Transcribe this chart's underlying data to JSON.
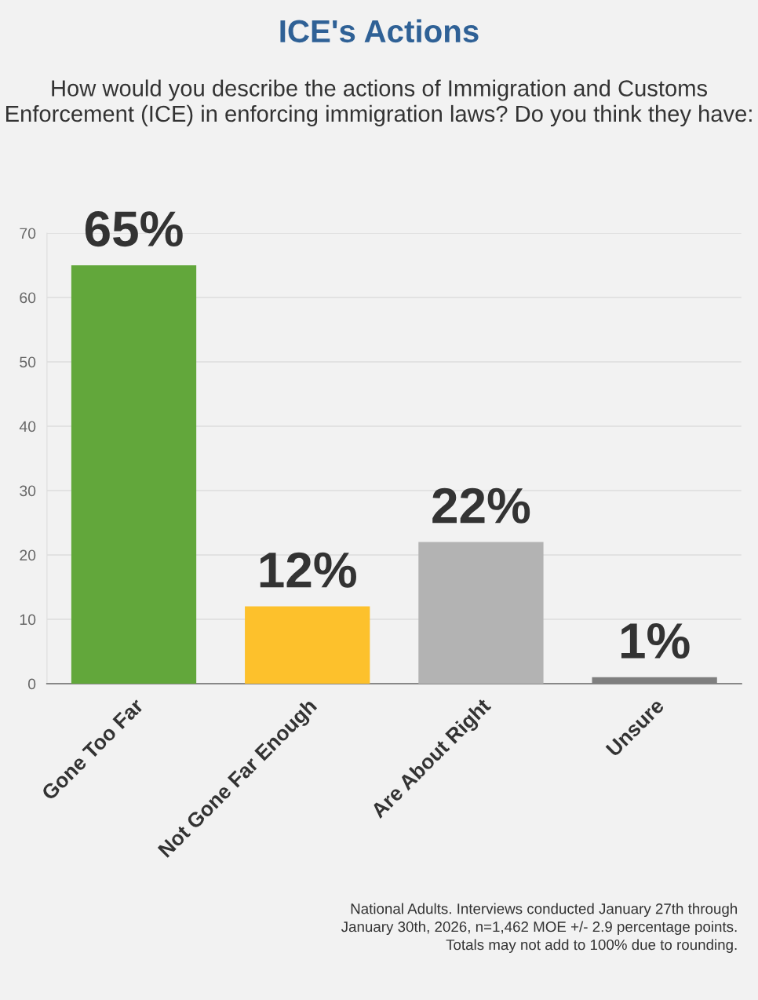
{
  "chart_data": {
    "type": "bar",
    "title": "ICE's Actions",
    "subtitle": "How would you describe the actions of Immigration and Customs Enforcement (ICE) in enforcing immigration laws? Do you think they have:",
    "categories": [
      "Gone Too Far",
      "Not Gone Far Enough",
      "Are About Right",
      "Unsure"
    ],
    "values": [
      65,
      12,
      22,
      1
    ],
    "colors": [
      "#62a73b",
      "#fdc12c",
      "#b3b3b3",
      "#7f7f7f"
    ],
    "value_labels": [
      "65%",
      "12%",
      "22%",
      "1%"
    ],
    "ylim": [
      0,
      70
    ],
    "yticks": [
      0,
      10,
      20,
      30,
      40,
      50,
      60,
      70
    ],
    "grid": "y",
    "legend": false,
    "annotations": [
      "National Adults. Interviews conducted January 27th through January 30th, 2026, n=1,462 MOE +/- 2.9 percentage points. Totals may not add to 100% due to rounding."
    ]
  }
}
